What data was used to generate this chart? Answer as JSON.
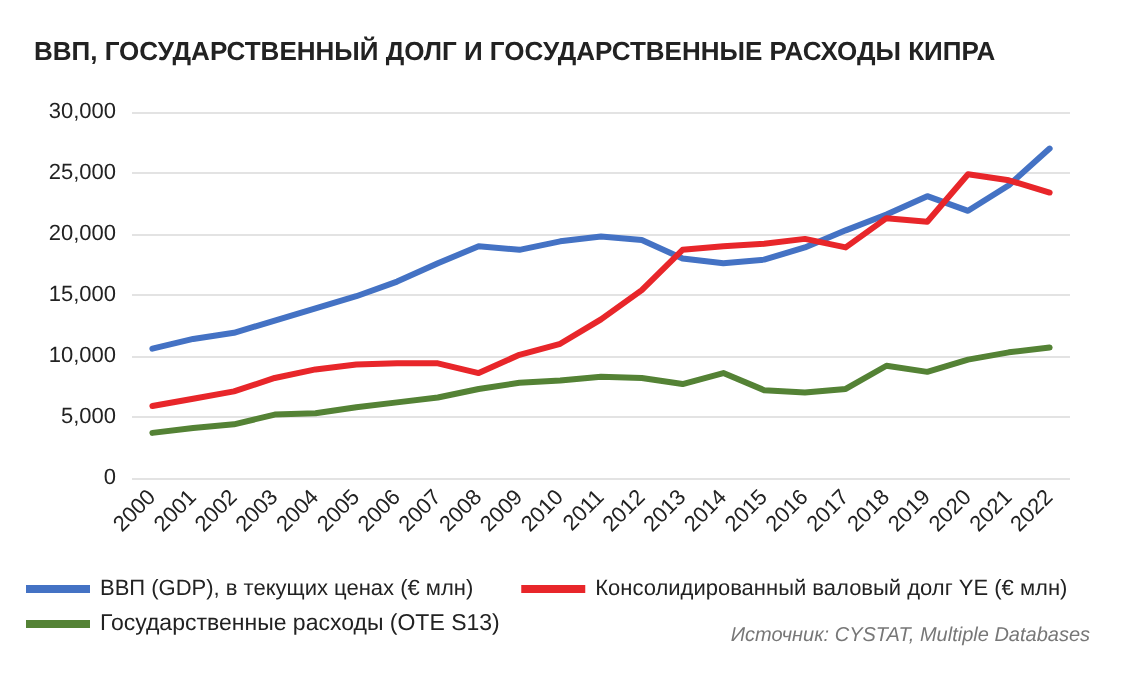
{
  "chart_data": {
    "type": "line",
    "title": "ВВП, ГОСУДАРСТВЕННЫЙ ДОЛГ И ГОСУДАРСТВЕННЫЕ РАСХОДЫ КИПРА",
    "categories": [
      "2000",
      "2001",
      "2002",
      "2003",
      "2004",
      "2005",
      "2006",
      "2007",
      "2008",
      "2009",
      "2010",
      "2011",
      "2012",
      "2013",
      "2014",
      "2015",
      "2016",
      "2017",
      "2018",
      "2019",
      "2020",
      "2021",
      "2022"
    ],
    "series": [
      {
        "name": "ВВП (GDP), в текущих ценах (€ млн)",
        "color": "#4472c4",
        "values": [
          10600,
          11400,
          11900,
          12900,
          13900,
          14900,
          16100,
          17600,
          19000,
          18700,
          19400,
          19800,
          19500,
          18000,
          17600,
          17900,
          18900,
          20300,
          21600,
          23100,
          21900,
          24000,
          27000
        ]
      },
      {
        "name": "Консолидированный валовый долг YE (€ млн)",
        "color": "#e8262a",
        "values": [
          5900,
          6500,
          7100,
          8200,
          8900,
          9300,
          9400,
          9400,
          8600,
          10100,
          11000,
          13000,
          15400,
          18700,
          19000,
          19200,
          19600,
          18900,
          21300,
          21000,
          24900,
          24400,
          23400
        ]
      },
      {
        "name": "Государственные расходы (OTE S13)",
        "color": "#548235",
        "values": [
          3700,
          4100,
          4400,
          5200,
          5300,
          5800,
          6200,
          6600,
          7300,
          7800,
          8000,
          8300,
          8200,
          7700,
          8600,
          7200,
          7000,
          7300,
          9200,
          8700,
          9700,
          10300,
          10700
        ]
      }
    ],
    "ylim": [
      0,
      30000
    ],
    "yticks": [
      0,
      {
        "value": 5000,
        "label": "5,000"
      },
      {
        "value": 10000,
        "label": "10,000"
      },
      {
        "value": 15000,
        "label": "15,000"
      },
      {
        "value": 20000,
        "label": "20,000"
      },
      {
        "value": 25000,
        "label": "25,000"
      },
      {
        "value": 30000,
        "label": "30,000"
      }
    ],
    "grid": "y",
    "legend": "bottom",
    "marker": "none",
    "line_style": "solid",
    "annotations": [
      "Источник: CYSTAT, Multiple Databases"
    ]
  }
}
